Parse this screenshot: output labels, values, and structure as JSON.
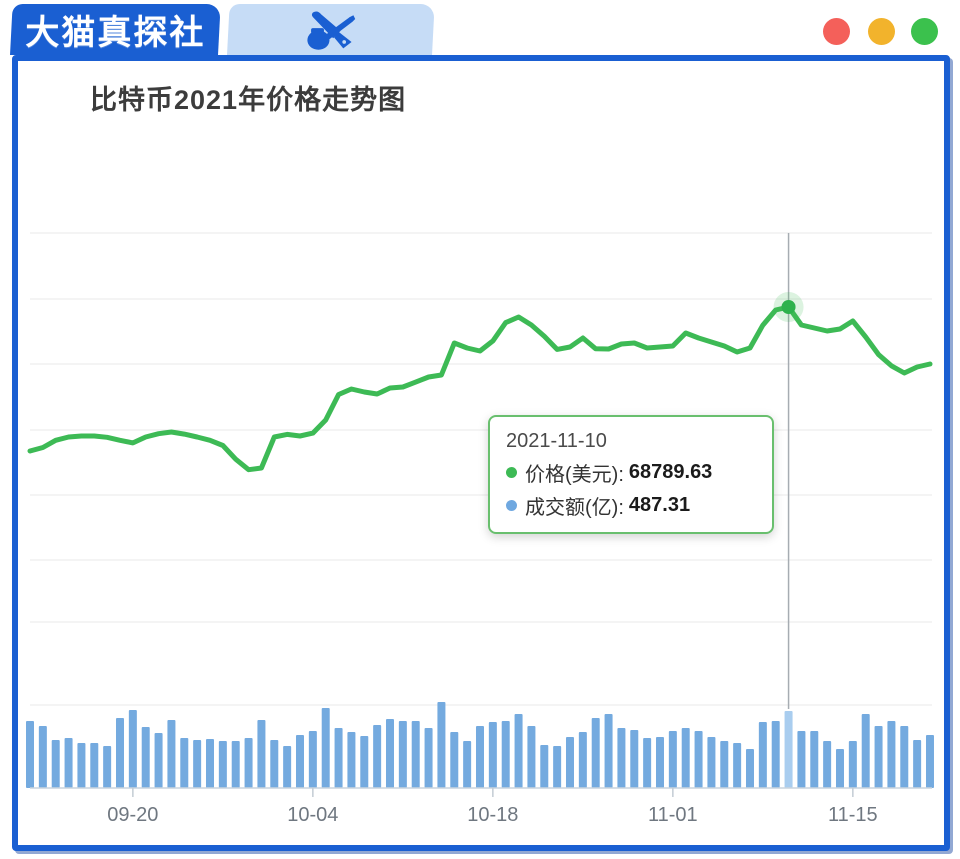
{
  "header": {
    "brand": "大猫真探社",
    "traffic_lights": {
      "red": "#f4605a",
      "yellow": "#f2b32c",
      "green": "#3bc14d"
    }
  },
  "chart": {
    "title": "比特币2021年价格走势图",
    "colors": {
      "line": "#3dba55",
      "point": "#2db24c",
      "bar": "#74aadf",
      "bar_highlight": "#a9cdef",
      "frame": "#1a5fd2",
      "tab_light": "#c6dcf6",
      "grid": "#eaeaea",
      "axis": "#c9d4de",
      "crosshair": "#a6acb2",
      "tick_label": "#6f7780"
    }
  },
  "tooltip": {
    "date": "2021-11-10",
    "rows": [
      {
        "marker_color": "#3dba55",
        "label": "价格(美元): ",
        "value": "68789.63"
      },
      {
        "marker_color": "#6fa8e0",
        "label": "成交额(亿): ",
        "value": "487.31"
      }
    ]
  },
  "chart_data": {
    "type": "line+bar",
    "title": "比特币2021年价格走势图",
    "x_tick_labels": [
      "09-20",
      "10-04",
      "10-18",
      "11-01",
      "11-15"
    ],
    "x_tick_days": [
      8,
      22,
      36,
      50,
      64
    ],
    "legend": [
      "价格(美元)",
      "成交额(亿)"
    ],
    "grid": true,
    "y_axis_labels_visible": false,
    "dates": [
      "09-12",
      "09-13",
      "09-14",
      "09-15",
      "09-16",
      "09-17",
      "09-18",
      "09-19",
      "09-20",
      "09-21",
      "09-22",
      "09-23",
      "09-24",
      "09-25",
      "09-26",
      "09-27",
      "09-28",
      "09-29",
      "09-30",
      "10-01",
      "10-02",
      "10-03",
      "10-04",
      "10-05",
      "10-06",
      "10-07",
      "10-08",
      "10-09",
      "10-10",
      "10-11",
      "10-12",
      "10-13",
      "10-14",
      "10-15",
      "10-16",
      "10-17",
      "10-18",
      "10-19",
      "10-20",
      "10-21",
      "10-22",
      "10-23",
      "10-24",
      "10-25",
      "10-26",
      "10-27",
      "10-28",
      "10-29",
      "10-30",
      "10-31",
      "11-01",
      "11-02",
      "11-03",
      "11-04",
      "11-05",
      "11-06",
      "11-07",
      "11-08",
      "11-09",
      "11-10",
      "11-11",
      "11-12",
      "11-13",
      "11-14",
      "11-15",
      "11-16",
      "11-17",
      "11-18",
      "11-19",
      "11-20",
      "11-21"
    ],
    "series": [
      {
        "name": "价格(美元)",
        "type": "line",
        "color": "#3dba55",
        "values": [
          46750,
          47300,
          48400,
          48900,
          49050,
          49050,
          48850,
          48400,
          48000,
          48900,
          49400,
          49660,
          49350,
          48900,
          48400,
          47600,
          45500,
          43900,
          44150,
          48900,
          49300,
          49050,
          49500,
          51500,
          55400,
          56240,
          55780,
          55480,
          56400,
          56550,
          57300,
          58080,
          58390,
          63280,
          62520,
          62060,
          63600,
          66400,
          67260,
          66040,
          64300,
          62300,
          62670,
          64050,
          62400,
          62360,
          63130,
          63280,
          62520,
          62670,
          62820,
          64810,
          64050,
          63430,
          62820,
          61900,
          62520,
          66000,
          68330,
          68789.63,
          66040,
          65580,
          65120,
          65420,
          66650,
          64200,
          61500,
          59800,
          58690,
          59610,
          60070
        ]
      },
      {
        "name": "成交额(亿)",
        "type": "bar",
        "color": "#74aadf",
        "values": [
          424.1,
          392.5,
          303.8,
          316.5,
          284.9,
          284.9,
          265.9,
          443.1,
          493.7,
          386.1,
          348.2,
          430.4,
          316.5,
          303.8,
          310.2,
          297.5,
          297.5,
          316.5,
          430.4,
          303.8,
          265.9,
          335.5,
          360.8,
          506.4,
          379.8,
          354.5,
          329.2,
          398.8,
          436.8,
          424.1,
          424.1,
          379.8,
          544.4,
          354.5,
          297.5,
          392.5,
          417.8,
          424.1,
          468.4,
          392.5,
          272.2,
          265.9,
          322.8,
          354.5,
          443.1,
          468.4,
          379.8,
          367.1,
          316.5,
          322.8,
          360.8,
          379.8,
          360.8,
          322.8,
          297.5,
          284.9,
          246.9,
          417.8,
          424.1,
          487.31,
          360.8,
          360.8,
          297.5,
          246.9,
          297.5,
          468.4,
          392.5,
          424.1,
          392.5,
          303.8,
          335.5
        ]
      }
    ],
    "highlight": {
      "date": "2021-11-10",
      "index": 59,
      "price": 68789.63,
      "volume": 487.31
    }
  }
}
